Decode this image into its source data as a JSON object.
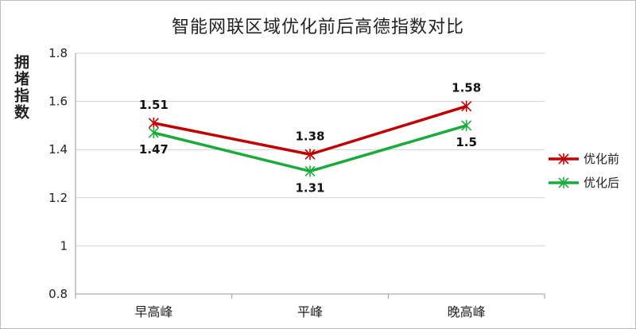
{
  "chart_data": {
    "type": "line",
    "title": "智能网联区域优化前后高德指数对比",
    "ylabel": "拥堵指数",
    "xlabel": "",
    "categories": [
      "早高峰",
      "平峰",
      "晚高峰"
    ],
    "ylim": [
      0.8,
      1.8
    ],
    "yticks": [
      "0.8",
      "1",
      "1.2",
      "1.4",
      "1.6",
      "1.8"
    ],
    "grid": true,
    "legend_position": "right",
    "series": [
      {
        "name": "优化前",
        "values": [
          1.51,
          1.38,
          1.58
        ],
        "labels": [
          "1.51",
          "1.38",
          "1.58"
        ],
        "color": "#c00000",
        "label_side": "above"
      },
      {
        "name": "优化后",
        "values": [
          1.47,
          1.31,
          1.5
        ],
        "labels": [
          "1.47",
          "1.31",
          "1.5"
        ],
        "color": "#1aab3c",
        "label_side": "below"
      }
    ]
  }
}
